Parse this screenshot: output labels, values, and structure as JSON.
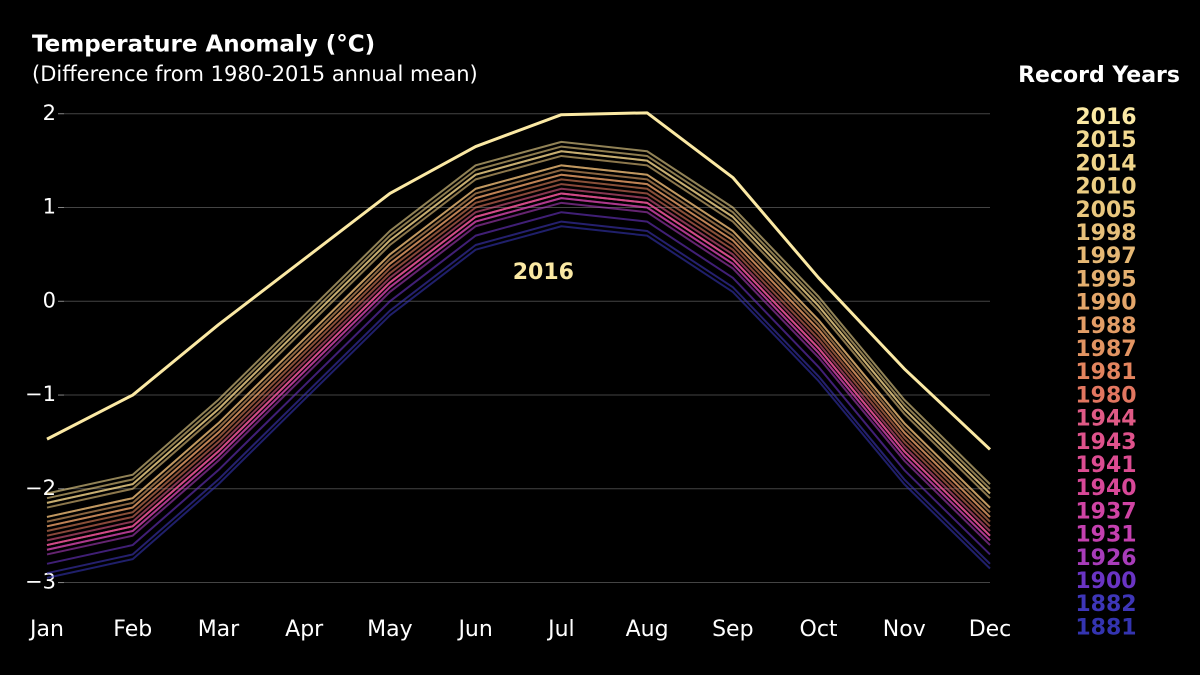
{
  "chart_data": {
    "type": "line",
    "title": "Temperature Anomaly (°C)",
    "subtitle": "(Difference from 1980-2015 annual mean)",
    "legend_title": "Record Years",
    "annotation": {
      "text": "2016",
      "x": "Jul",
      "y": 0.3
    },
    "categories": [
      "Jan",
      "Feb",
      "Mar",
      "Apr",
      "May",
      "Jun",
      "Jul",
      "Aug",
      "Sep",
      "Oct",
      "Nov",
      "Dec"
    ],
    "ylim": [
      -3.25,
      2.2
    ],
    "yticks": [
      2,
      1,
      0,
      {
        "value": -1,
        "label": "−1"
      },
      {
        "value": -2,
        "label": "−2"
      },
      {
        "value": -3,
        "label": "−3"
      }
    ],
    "grid": true,
    "series": [
      {
        "name": "2016",
        "color": "#fbe9a4",
        "values": [
          -1.47,
          -1.0,
          -0.25,
          0.45,
          1.15,
          1.65,
          1.99,
          2.01,
          1.32,
          0.25,
          -0.72,
          -1.58
        ]
      },
      {
        "name": "2015",
        "color": "#f2d990",
        "values": [
          -2.05,
          -1.85,
          -1.05,
          -0.15,
          0.75,
          1.45,
          1.7,
          1.6,
          1.0,
          0.05,
          -1.05,
          -1.95
        ]
      },
      {
        "name": "2014",
        "color": "#efd48a",
        "values": [
          -2.15,
          -1.95,
          -1.15,
          -0.25,
          0.65,
          1.35,
          1.6,
          1.5,
          0.9,
          -0.05,
          -1.15,
          -2.05
        ]
      },
      {
        "name": "2010",
        "color": "#ecce84",
        "values": [
          -2.1,
          -1.9,
          -1.1,
          -0.2,
          0.7,
          1.4,
          1.65,
          1.55,
          0.95,
          0,
          -1.1,
          -2.0
        ]
      },
      {
        "name": "2005",
        "color": "#e9c77e",
        "values": [
          -2.2,
          -2.0,
          -1.2,
          -0.3,
          0.6,
          1.3,
          1.55,
          1.45,
          0.85,
          -0.1,
          -1.2,
          -2.1
        ]
      },
      {
        "name": "1998",
        "color": "#e7c07a",
        "values": [
          -2.15,
          -1.95,
          -1.15,
          -0.25,
          0.65,
          1.35,
          1.6,
          1.5,
          0.9,
          -0.05,
          -1.15,
          -2.05
        ]
      },
      {
        "name": "1997",
        "color": "#e6b874",
        "values": [
          -2.3,
          -2.1,
          -1.3,
          -0.4,
          0.5,
          1.2,
          1.45,
          1.35,
          0.75,
          -0.2,
          -1.3,
          -2.2
        ]
      },
      {
        "name": "1995",
        "color": "#e5b070",
        "values": [
          -2.3,
          -2.1,
          -1.3,
          -0.4,
          0.5,
          1.2,
          1.45,
          1.35,
          0.75,
          -0.2,
          -1.3,
          -2.2
        ]
      },
      {
        "name": "1990",
        "color": "#e4a66a",
        "values": [
          -2.35,
          -2.15,
          -1.35,
          -0.45,
          0.45,
          1.15,
          1.4,
          1.3,
          0.7,
          -0.25,
          -1.35,
          -2.25
        ]
      },
      {
        "name": "1988",
        "color": "#e39d66",
        "values": [
          -2.4,
          -2.2,
          -1.4,
          -0.5,
          0.4,
          1.1,
          1.35,
          1.25,
          0.65,
          -0.3,
          -1.4,
          -2.3
        ]
      },
      {
        "name": "1987",
        "color": "#e29462",
        "values": [
          -2.4,
          -2.2,
          -1.4,
          -0.5,
          0.4,
          1.1,
          1.35,
          1.25,
          0.65,
          -0.3,
          -1.4,
          -2.3
        ]
      },
      {
        "name": "1981",
        "color": "#e3845e",
        "values": [
          -2.45,
          -2.25,
          -1.45,
          -0.55,
          0.35,
          1.05,
          1.3,
          1.2,
          0.6,
          -0.35,
          -1.45,
          -2.35
        ]
      },
      {
        "name": "1980",
        "color": "#e27660",
        "values": [
          -2.5,
          -2.3,
          -1.5,
          -0.6,
          0.3,
          1.0,
          1.25,
          1.15,
          0.55,
          -0.4,
          -1.5,
          -2.4
        ]
      },
      {
        "name": "1944",
        "color": "#e05a86",
        "values": [
          -2.55,
          -2.35,
          -1.55,
          -0.65,
          0.25,
          0.95,
          1.2,
          1.1,
          0.5,
          -0.45,
          -1.55,
          -2.45
        ]
      },
      {
        "name": "1943",
        "color": "#df528c",
        "values": [
          -2.6,
          -2.4,
          -1.6,
          -0.7,
          0.2,
          0.9,
          1.15,
          1.05,
          0.45,
          -0.5,
          -1.6,
          -2.5
        ]
      },
      {
        "name": "1941",
        "color": "#dc4c92",
        "values": [
          -2.6,
          -2.4,
          -1.6,
          -0.7,
          0.2,
          0.9,
          1.15,
          1.05,
          0.45,
          -0.5,
          -1.6,
          -2.5
        ]
      },
      {
        "name": "1940",
        "color": "#d84898",
        "values": [
          -2.6,
          -2.4,
          -1.6,
          -0.7,
          0.2,
          0.9,
          1.15,
          1.05,
          0.45,
          -0.5,
          -1.6,
          -2.5
        ]
      },
      {
        "name": "1937",
        "color": "#d044a4",
        "values": [
          -2.65,
          -2.45,
          -1.65,
          -0.75,
          0.15,
          0.85,
          1.1,
          1.0,
          0.4,
          -0.55,
          -1.65,
          -2.55
        ]
      },
      {
        "name": "1931",
        "color": "#c440b0",
        "values": [
          -2.65,
          -2.45,
          -1.65,
          -0.75,
          0.15,
          0.85,
          1.1,
          1.0,
          0.4,
          -0.55,
          -1.65,
          -2.55
        ]
      },
      {
        "name": "1926",
        "color": "#a83cba",
        "values": [
          -2.7,
          -2.5,
          -1.7,
          -0.8,
          0.1,
          0.8,
          1.05,
          0.95,
          0.35,
          -0.6,
          -1.7,
          -2.6
        ]
      },
      {
        "name": "1900",
        "color": "#6a34c4",
        "values": [
          -2.8,
          -2.6,
          -1.8,
          -0.9,
          0.0,
          0.7,
          0.95,
          0.85,
          0.25,
          -0.7,
          -1.8,
          -2.7
        ]
      },
      {
        "name": "1882",
        "color": "#3e36b8",
        "values": [
          -2.9,
          -2.7,
          -1.9,
          -1.0,
          -0.1,
          0.6,
          0.85,
          0.75,
          0.15,
          -0.8,
          -1.9,
          -2.8
        ]
      },
      {
        "name": "1881",
        "color": "#3434b0",
        "values": [
          -2.95,
          -2.75,
          -1.95,
          -1.05,
          -0.15,
          0.55,
          0.8,
          0.7,
          0.1,
          -0.85,
          -1.95,
          -2.85
        ]
      }
    ]
  }
}
